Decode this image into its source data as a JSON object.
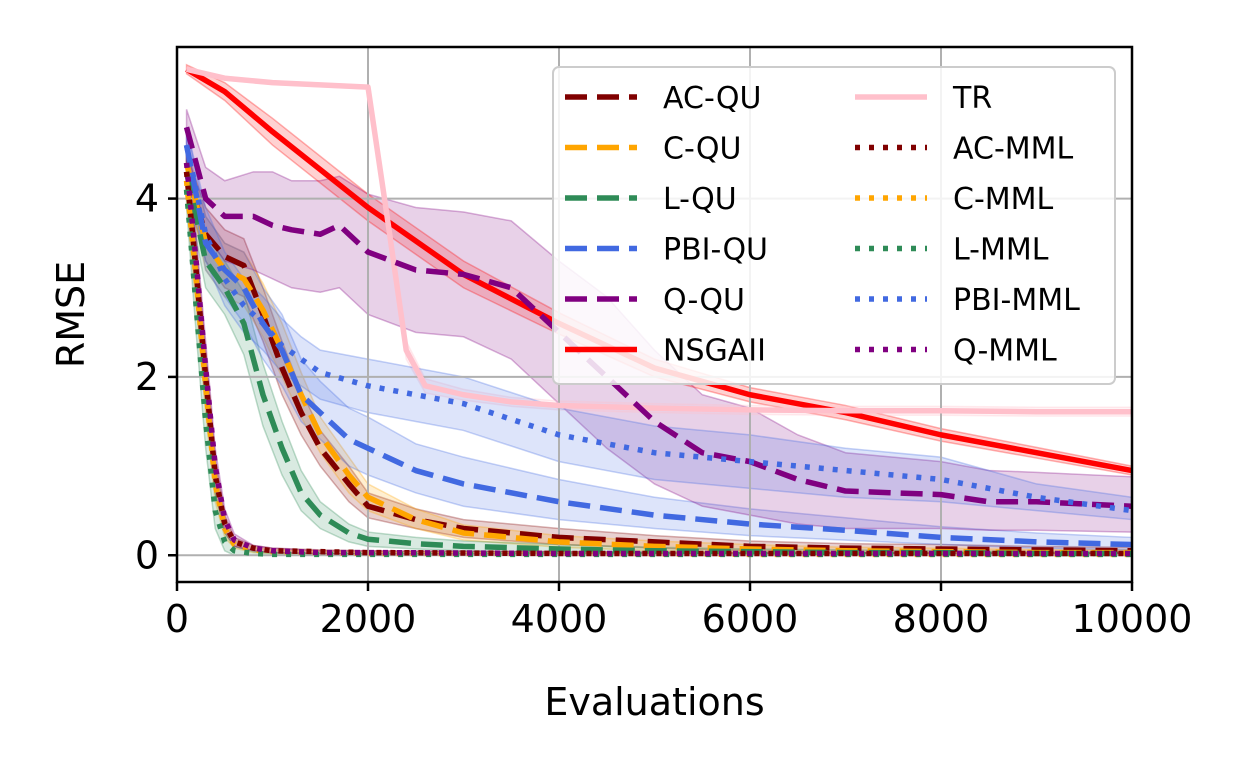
{
  "chart_data": {
    "type": "line",
    "xlabel": "Evaluations",
    "ylabel": "RMSE",
    "xlim": [
      0,
      10000
    ],
    "ylim": [
      -0.3,
      5.7
    ],
    "xticks": [
      0,
      2000,
      4000,
      6000,
      8000,
      10000
    ],
    "yticks": [
      0,
      2,
      4
    ],
    "xtick_labels": [
      "0",
      "2000",
      "4000",
      "6000",
      "8000",
      "10000"
    ],
    "ytick_labels": [
      "0",
      "2",
      "4"
    ],
    "grid": true,
    "legend_position": "top-right",
    "legend_columns": 2,
    "series": [
      {
        "name": "AC-QU",
        "color": "#800000",
        "dash": "dashed",
        "x": [
          100,
          300,
          500,
          700,
          900,
          1100,
          1300,
          1500,
          1800,
          2000,
          2500,
          3000,
          4000,
          5000,
          6000,
          7000,
          8000,
          9000,
          10000
        ],
        "y": [
          4.3,
          3.6,
          3.35,
          3.25,
          2.7,
          2.1,
          1.6,
          1.2,
          0.8,
          0.55,
          0.4,
          0.3,
          0.2,
          0.15,
          0.1,
          0.08,
          0.07,
          0.06,
          0.05
        ],
        "lower": [
          4.1,
          3.3,
          3.0,
          2.9,
          2.4,
          1.8,
          1.35,
          1.0,
          0.6,
          0.42,
          0.3,
          0.2,
          0.12,
          0.08,
          0.05,
          0.03,
          0.02,
          0.02,
          0.01
        ],
        "upper": [
          4.5,
          3.9,
          3.65,
          3.55,
          3.0,
          2.4,
          1.85,
          1.4,
          1.0,
          0.7,
          0.52,
          0.4,
          0.3,
          0.22,
          0.16,
          0.13,
          0.12,
          0.1,
          0.09
        ]
      },
      {
        "name": "C-QU",
        "color": "#FFA500",
        "dash": "dashed",
        "x": [
          100,
          300,
          500,
          700,
          900,
          1100,
          1300,
          1500,
          1800,
          2000,
          2500,
          3000,
          4000,
          5000,
          6000,
          7000,
          8000,
          9000,
          10000
        ],
        "y": [
          4.4,
          3.5,
          3.2,
          3.1,
          2.75,
          2.3,
          1.8,
          1.35,
          0.9,
          0.65,
          0.4,
          0.25,
          0.15,
          0.1,
          0.07,
          0.05,
          0.04,
          0.03,
          0.03
        ],
        "lower": [
          4.2,
          3.2,
          2.9,
          2.8,
          2.45,
          2.0,
          1.55,
          1.15,
          0.7,
          0.5,
          0.3,
          0.17,
          0.09,
          0.05,
          0.03,
          0.02,
          0.01,
          0.01,
          0.01
        ],
        "upper": [
          4.6,
          3.8,
          3.5,
          3.4,
          3.05,
          2.6,
          2.05,
          1.55,
          1.1,
          0.8,
          0.52,
          0.34,
          0.22,
          0.16,
          0.12,
          0.09,
          0.08,
          0.06,
          0.06
        ]
      },
      {
        "name": "L-QU",
        "color": "#2E8B57",
        "dash": "dashed",
        "x": [
          100,
          300,
          500,
          700,
          900,
          1100,
          1300,
          1500,
          1800,
          2000,
          2500,
          3000,
          4000,
          5000,
          6000,
          7000,
          8000,
          9000,
          10000
        ],
        "y": [
          4.3,
          3.3,
          3.0,
          2.6,
          1.8,
          1.2,
          0.7,
          0.45,
          0.25,
          0.18,
          0.13,
          0.1,
          0.07,
          0.05,
          0.04,
          0.03,
          0.03,
          0.02,
          0.02
        ],
        "lower": [
          4.1,
          3.0,
          2.7,
          2.25,
          1.45,
          0.9,
          0.5,
          0.3,
          0.15,
          0.1,
          0.07,
          0.05,
          0.03,
          0.02,
          0.01,
          0.01,
          0.01,
          0.0,
          0.0
        ],
        "upper": [
          4.5,
          3.6,
          3.3,
          2.95,
          2.15,
          1.5,
          0.95,
          0.6,
          0.35,
          0.26,
          0.2,
          0.16,
          0.12,
          0.09,
          0.07,
          0.06,
          0.05,
          0.04,
          0.04
        ]
      },
      {
        "name": "PBI-QU",
        "color": "#4169E1",
        "dash": "dashed",
        "x": [
          100,
          300,
          500,
          700,
          900,
          1100,
          1300,
          1500,
          1800,
          2000,
          2500,
          3000,
          4000,
          5000,
          6000,
          7000,
          8000,
          9000,
          10000
        ],
        "y": [
          4.6,
          3.5,
          3.2,
          3.0,
          2.6,
          2.3,
          1.8,
          1.6,
          1.3,
          1.2,
          0.95,
          0.8,
          0.6,
          0.45,
          0.35,
          0.28,
          0.2,
          0.15,
          0.12
        ],
        "lower": [
          4.4,
          3.2,
          2.9,
          2.6,
          2.2,
          1.9,
          1.5,
          1.3,
          1.0,
          0.9,
          0.7,
          0.55,
          0.4,
          0.3,
          0.22,
          0.17,
          0.12,
          0.08,
          0.06
        ],
        "upper": [
          4.8,
          3.8,
          3.5,
          3.4,
          3.0,
          2.7,
          2.2,
          1.95,
          1.65,
          1.55,
          1.25,
          1.1,
          0.85,
          0.65,
          0.52,
          0.42,
          0.32,
          0.25,
          0.2
        ]
      },
      {
        "name": "Q-QU",
        "color": "#800080",
        "dash": "dashed",
        "x": [
          100,
          300,
          500,
          800,
          1000,
          1200,
          1500,
          1700,
          2000,
          2500,
          3000,
          3500,
          4000,
          4500,
          5000,
          5500,
          6000,
          6500,
          7000,
          8000,
          8500,
          9000,
          10000
        ],
        "y": [
          4.8,
          4.0,
          3.8,
          3.8,
          3.7,
          3.65,
          3.6,
          3.7,
          3.4,
          3.2,
          3.15,
          3.0,
          2.5,
          2.0,
          1.5,
          1.15,
          1.05,
          0.85,
          0.72,
          0.68,
          0.6,
          0.6,
          0.55
        ],
        "lower": [
          4.6,
          3.6,
          3.3,
          3.2,
          3.1,
          3.0,
          2.95,
          3.0,
          2.7,
          2.5,
          2.45,
          2.2,
          1.7,
          1.2,
          0.8,
          0.55,
          0.45,
          0.35,
          0.3,
          0.3,
          0.28,
          0.28,
          0.26
        ],
        "upper": [
          5.0,
          4.35,
          4.2,
          4.3,
          4.3,
          4.2,
          4.2,
          4.25,
          4.05,
          3.9,
          3.85,
          3.75,
          3.3,
          2.9,
          2.3,
          1.8,
          1.65,
          1.35,
          1.15,
          1.05,
          0.95,
          0.93,
          0.88
        ]
      },
      {
        "name": "NSGAII",
        "color": "#FF0000",
        "dash": "solid",
        "x": [
          100,
          500,
          1000,
          2000,
          3000,
          4000,
          5000,
          6000,
          7000,
          8000,
          9000,
          10000
        ],
        "y": [
          5.45,
          5.2,
          4.75,
          3.9,
          3.15,
          2.6,
          2.1,
          1.8,
          1.6,
          1.35,
          1.15,
          0.95
        ],
        "lower": [
          5.4,
          5.1,
          4.6,
          3.75,
          3.0,
          2.48,
          2.0,
          1.72,
          1.52,
          1.28,
          1.09,
          0.9
        ],
        "upper": [
          5.5,
          5.3,
          4.9,
          4.05,
          3.3,
          2.72,
          2.2,
          1.88,
          1.68,
          1.42,
          1.21,
          1.0
        ]
      },
      {
        "name": "TR",
        "color": "#FFC0CB",
        "dash": "solid",
        "x": [
          100,
          500,
          1000,
          2000,
          2200,
          2400,
          2600,
          3000,
          3500,
          4000,
          5000,
          6000,
          7000,
          8000,
          9000,
          10000
        ],
        "y": [
          5.45,
          5.35,
          5.3,
          5.25,
          3.8,
          2.3,
          1.9,
          1.8,
          1.72,
          1.68,
          1.65,
          1.63,
          1.62,
          1.62,
          1.61,
          1.61
        ],
        "lower": [
          5.43,
          5.33,
          5.28,
          5.23,
          3.7,
          2.2,
          1.82,
          1.74,
          1.67,
          1.63,
          1.6,
          1.58,
          1.57,
          1.57,
          1.56,
          1.56
        ],
        "upper": [
          5.47,
          5.37,
          5.32,
          5.27,
          3.9,
          2.4,
          1.98,
          1.86,
          1.77,
          1.73,
          1.7,
          1.68,
          1.67,
          1.67,
          1.66,
          1.66
        ]
      },
      {
        "name": "AC-MML",
        "color": "#800000",
        "dash": "dotted",
        "x": [
          100,
          200,
          300,
          400,
          500,
          600,
          800,
          1000,
          1500,
          2000,
          4000,
          6000,
          8000,
          10000
        ],
        "y": [
          4.3,
          3.2,
          2.0,
          0.9,
          0.35,
          0.15,
          0.08,
          0.05,
          0.04,
          0.03,
          0.02,
          0.02,
          0.02,
          0.02
        ],
        "lower": [
          4.1,
          2.9,
          1.7,
          0.7,
          0.25,
          0.1,
          0.05,
          0.03,
          0.02,
          0.01,
          0.01,
          0.01,
          0.01,
          0.01
        ],
        "upper": [
          4.5,
          3.5,
          2.3,
          1.1,
          0.45,
          0.2,
          0.11,
          0.08,
          0.06,
          0.05,
          0.04,
          0.03,
          0.03,
          0.03
        ]
      },
      {
        "name": "C-MML",
        "color": "#FFA500",
        "dash": "dotted",
        "x": [
          100,
          200,
          300,
          400,
          500,
          600,
          800,
          1000,
          1500,
          2000,
          4000,
          6000,
          8000,
          10000
        ],
        "y": [
          4.2,
          3.1,
          1.9,
          0.8,
          0.3,
          0.12,
          0.06,
          0.04,
          0.03,
          0.02,
          0.02,
          0.01,
          0.01,
          0.01
        ],
        "lower": [
          4.0,
          2.8,
          1.6,
          0.6,
          0.2,
          0.08,
          0.03,
          0.02,
          0.01,
          0.01,
          0.01,
          0.0,
          0.0,
          0.0
        ],
        "upper": [
          4.4,
          3.4,
          2.2,
          1.0,
          0.4,
          0.17,
          0.09,
          0.06,
          0.05,
          0.04,
          0.03,
          0.02,
          0.02,
          0.02
        ]
      },
      {
        "name": "L-MML",
        "color": "#2E8B57",
        "dash": "dotted",
        "x": [
          100,
          200,
          300,
          400,
          500,
          600,
          800,
          1000,
          1500,
          2000,
          4000,
          6000,
          8000,
          10000
        ],
        "y": [
          4.1,
          2.8,
          1.5,
          0.5,
          0.15,
          0.05,
          0.02,
          0.01,
          0.01,
          0.01,
          0.01,
          0.01,
          0.01,
          0.01
        ],
        "lower": [
          3.9,
          2.5,
          1.2,
          0.3,
          0.05,
          0.0,
          0.0,
          0.0,
          0.0,
          0.0,
          0.0,
          0.0,
          0.0,
          0.0
        ],
        "upper": [
          4.3,
          3.1,
          1.8,
          0.7,
          0.25,
          0.1,
          0.04,
          0.02,
          0.02,
          0.02,
          0.02,
          0.02,
          0.02,
          0.02
        ]
      },
      {
        "name": "PBI-MML",
        "color": "#4169E1",
        "dash": "dotted",
        "x": [
          100,
          300,
          500,
          700,
          900,
          1100,
          1300,
          1500,
          2000,
          2500,
          3000,
          4000,
          5000,
          6000,
          7000,
          8000,
          9000,
          10000
        ],
        "y": [
          4.6,
          3.6,
          3.1,
          2.8,
          2.6,
          2.35,
          2.2,
          2.05,
          1.9,
          1.8,
          1.7,
          1.35,
          1.15,
          1.05,
          0.95,
          0.85,
          0.65,
          0.5
        ],
        "lower": [
          4.4,
          3.3,
          2.8,
          2.5,
          2.3,
          2.05,
          1.9,
          1.75,
          1.6,
          1.5,
          1.4,
          1.05,
          0.85,
          0.75,
          0.65,
          0.6,
          0.5,
          0.4
        ],
        "upper": [
          4.8,
          3.9,
          3.4,
          3.1,
          2.9,
          2.65,
          2.45,
          2.3,
          2.2,
          2.1,
          2.0,
          1.65,
          1.45,
          1.35,
          1.2,
          1.1,
          0.8,
          0.65
        ]
      },
      {
        "name": "Q-MML",
        "color": "#800080",
        "dash": "dotted",
        "x": [
          100,
          200,
          300,
          400,
          500,
          600,
          800,
          1000,
          1500,
          2000,
          4000,
          6000,
          8000,
          10000
        ],
        "y": [
          4.4,
          3.3,
          2.1,
          1.0,
          0.4,
          0.17,
          0.08,
          0.05,
          0.03,
          0.03,
          0.02,
          0.02,
          0.02,
          0.02
        ],
        "lower": [
          4.2,
          3.0,
          1.8,
          0.8,
          0.28,
          0.1,
          0.05,
          0.03,
          0.02,
          0.01,
          0.01,
          0.01,
          0.01,
          0.01
        ],
        "upper": [
          4.6,
          3.6,
          2.4,
          1.2,
          0.52,
          0.24,
          0.11,
          0.08,
          0.05,
          0.05,
          0.04,
          0.03,
          0.03,
          0.03
        ]
      }
    ]
  }
}
